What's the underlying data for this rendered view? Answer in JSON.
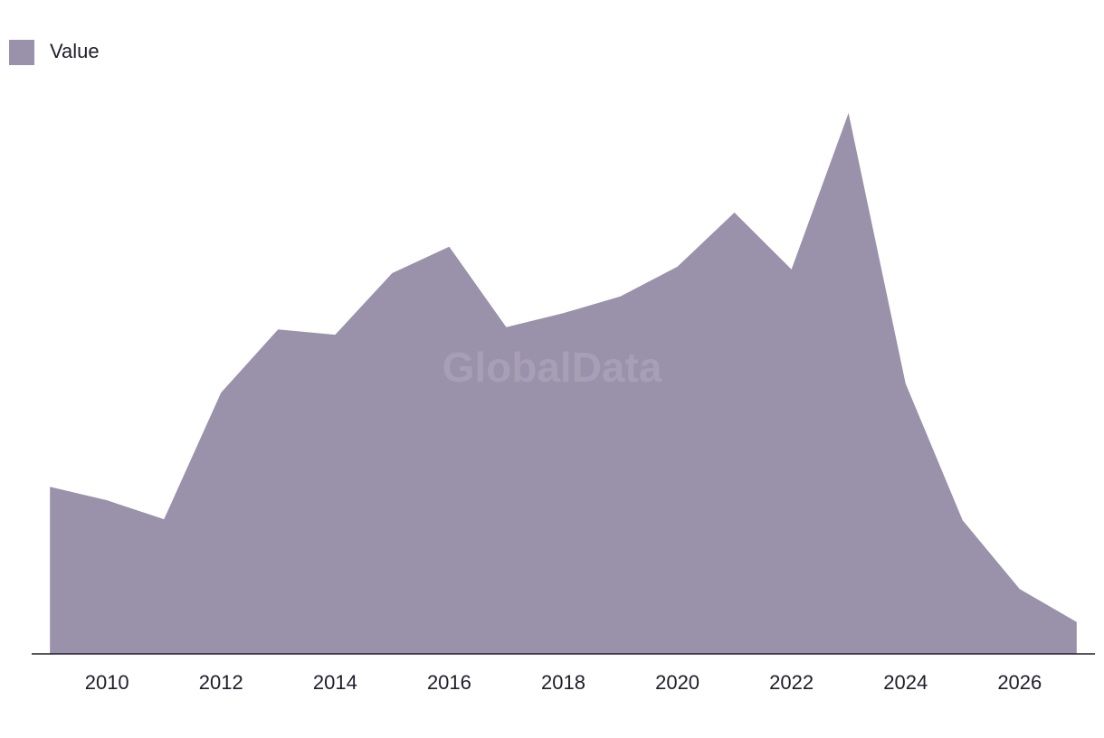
{
  "chart_data": {
    "type": "area",
    "watermark": "GlobalData",
    "x": [
      2009,
      2010,
      2011,
      2012,
      2013,
      2014,
      2015,
      2016,
      2017,
      2018,
      2019,
      2020,
      2021,
      2022,
      2023,
      2024,
      2025,
      2026,
      2027
    ],
    "series": [
      {
        "name": "Value",
        "color": "#9a91aa",
        "values": [
          30.9,
          28.4,
          24.9,
          48.3,
          60.0,
          59.0,
          70.4,
          75.3,
          60.4,
          63.0,
          66.1,
          71.6,
          81.6,
          71.1,
          100,
          50.0,
          24.7,
          12.0,
          5.9
        ]
      }
    ],
    "xlim": [
      2008.68,
      2027.32
    ],
    "xticks": [
      2010,
      2012,
      2014,
      2016,
      2018,
      2020,
      2022,
      2024,
      2026
    ],
    "ylim": [
      0,
      100
    ],
    "legend": "top-left"
  }
}
